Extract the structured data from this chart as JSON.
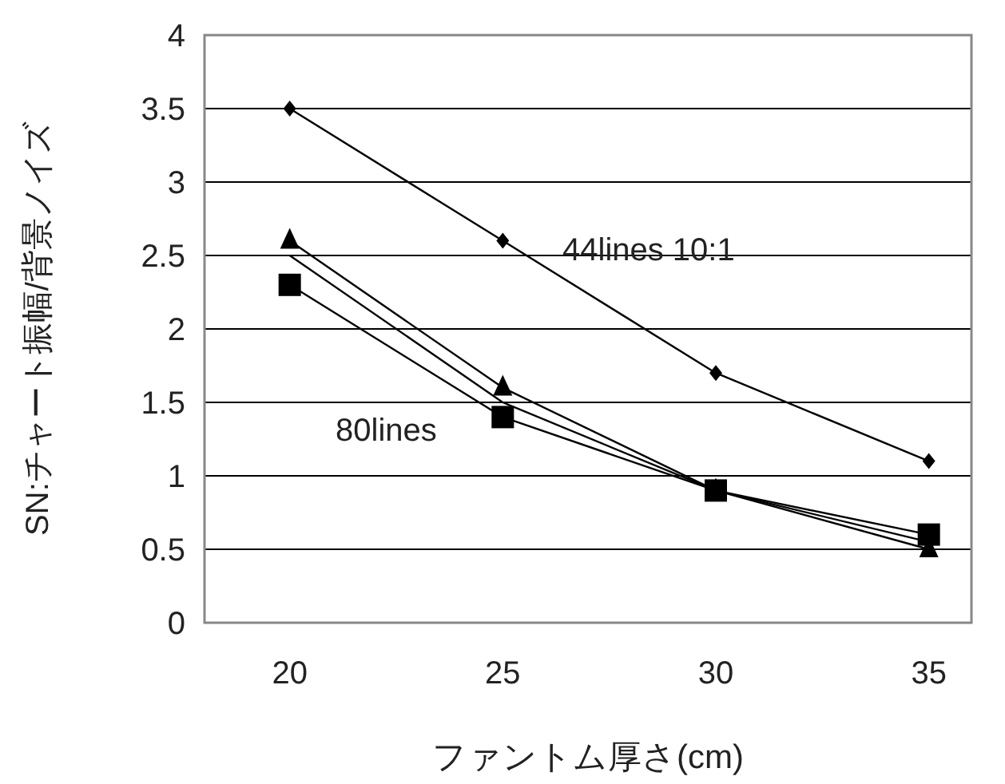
{
  "chart_data": {
    "type": "line",
    "xlabel": "ファントム厚さ(cm)",
    "ylabel": "SN:チャート振幅/背景ノイズ",
    "x": [
      20,
      25,
      30,
      35
    ],
    "series": [
      {
        "color": "#000000",
        "marker": "diamond",
        "values": [
          3.5,
          2.6,
          1.7,
          1.1
        ]
      },
      {
        "color": "#000000",
        "marker": "triangle",
        "values": [
          2.6,
          1.6,
          0.9,
          0.5
        ]
      },
      {
        "color": "#000000",
        "marker": "none",
        "values": [
          2.5,
          1.5,
          0.9,
          0.55
        ]
      },
      {
        "color": "#000000",
        "marker": "square",
        "values": [
          2.3,
          1.4,
          0.9,
          0.6
        ]
      }
    ],
    "annotations": [
      "44lines 10:1",
      "80lines"
    ],
    "xlim": [
      18,
      36
    ],
    "ylim": [
      0,
      4
    ],
    "xticks": [
      20,
      25,
      30,
      35
    ],
    "yticks": [
      0,
      0.5,
      1,
      1.5,
      2,
      2.5,
      3,
      3.5,
      4
    ],
    "grid": "y"
  }
}
